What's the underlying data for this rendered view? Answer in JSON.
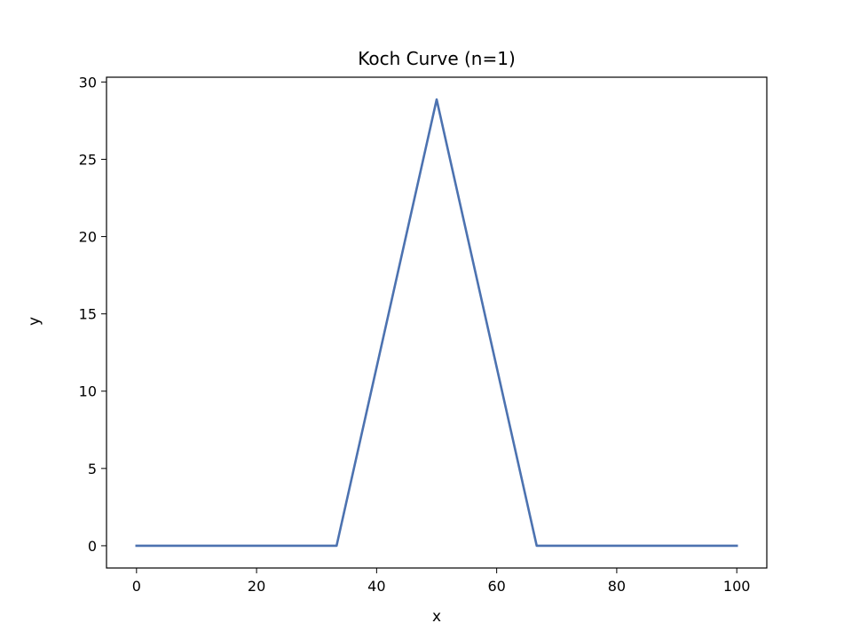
{
  "chart_data": {
    "type": "line",
    "title": "Koch Curve (n=1)",
    "xlabel": "x",
    "ylabel": "y",
    "xlim": [
      -5,
      105
    ],
    "ylim": [
      -1.44,
      30.31
    ],
    "xticks": [
      0,
      20,
      40,
      60,
      80,
      100
    ],
    "yticks": [
      0,
      5,
      10,
      15,
      20,
      25,
      30
    ],
    "grid": false,
    "series": [
      {
        "x": [
          0,
          33.33,
          50,
          66.67,
          100
        ],
        "y": [
          0,
          0,
          28.87,
          0,
          0
        ],
        "color": "#4c72b0"
      }
    ]
  }
}
